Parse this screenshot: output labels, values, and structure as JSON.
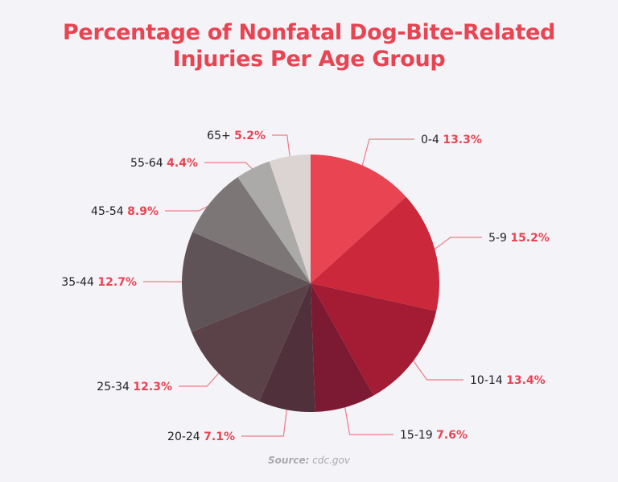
{
  "chart_data": {
    "type": "pie",
    "title_lines": [
      "Percentage of Nonfatal Dog-Bite-Related",
      "Injuries Per Age Group"
    ],
    "unit": "%",
    "slices": [
      {
        "label": "0-4",
        "value": 13.3,
        "value_text": "13.3%",
        "color": "#e84452"
      },
      {
        "label": "5-9",
        "value": 15.2,
        "value_text": "15.2%",
        "color": "#cc283c"
      },
      {
        "label": "10-14",
        "value": 13.4,
        "value_text": "13.4%",
        "color": "#a31c33"
      },
      {
        "label": "15-19",
        "value": 7.6,
        "value_text": "7.6%",
        "color": "#7d1a33"
      },
      {
        "label": "20-24",
        "value": 7.1,
        "value_text": "7.1%",
        "color": "#4f303b"
      },
      {
        "label": "25-34",
        "value": 12.3,
        "value_text": "12.3%",
        "color": "#5b4248"
      },
      {
        "label": "35-44",
        "value": 12.7,
        "value_text": "12.7%",
        "color": "#605357"
      },
      {
        "label": "45-54",
        "value": 8.9,
        "value_text": "8.9%",
        "color": "#7c7677"
      },
      {
        "label": "55-64",
        "value": 4.4,
        "value_text": "4.4%",
        "color": "#acaaa8"
      },
      {
        "label": "65+",
        "value": 5.2,
        "value_text": "5.2%",
        "color": "#dcd3d3"
      }
    ],
    "legend": "none",
    "value_color": "#e84452",
    "leader_color": "#ef7b86"
  },
  "source": {
    "label": "Source:",
    "value": "cdc.gov"
  }
}
